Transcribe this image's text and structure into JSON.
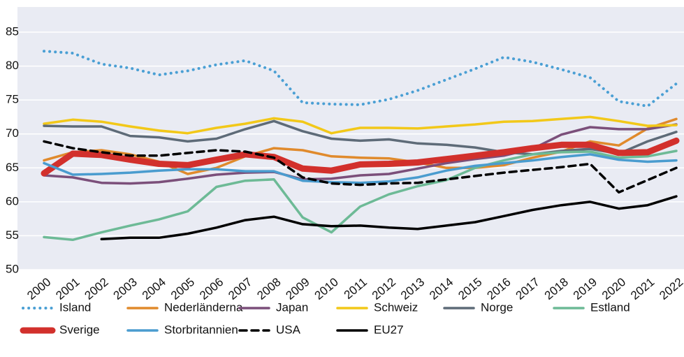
{
  "chart_data": {
    "type": "line",
    "x": [
      2000,
      2001,
      2002,
      2003,
      2004,
      2005,
      2006,
      2007,
      2008,
      2009,
      2010,
      2011,
      2012,
      2013,
      2014,
      2015,
      2016,
      2017,
      2018,
      2019,
      2020,
      2021,
      2022
    ],
    "xlim": [
      2000,
      2022
    ],
    "xticks": [
      2000,
      2001,
      2002,
      2003,
      2004,
      2005,
      2006,
      2007,
      2008,
      2009,
      2010,
      2011,
      2012,
      2013,
      2014,
      2015,
      2016,
      2017,
      2018,
      2019,
      2020,
      2021,
      2022
    ],
    "ylim": [
      50,
      85
    ],
    "yticks": [
      50,
      55,
      60,
      65,
      70,
      75,
      80,
      85
    ],
    "grid": true,
    "legend": "bottom",
    "series": [
      {
        "name": "Island",
        "color": "#4a9fd4",
        "style": "dotted",
        "width": 4,
        "values": [
          82.2,
          81.9,
          80.3,
          79.7,
          78.7,
          79.3,
          80.2,
          80.8,
          79.3,
          74.6,
          74.4,
          74.3,
          75.1,
          76.4,
          78.0,
          79.6,
          81.3,
          80.6,
          79.5,
          78.3,
          74.8,
          74.1,
          77.4
        ]
      },
      {
        "name": "Nederländerna",
        "color": "#e08a2c",
        "style": "solid",
        "width": 3.5,
        "values": [
          66.1,
          67.3,
          67.6,
          67.0,
          65.9,
          64.1,
          65.0,
          66.7,
          67.9,
          67.6,
          66.7,
          66.5,
          66.4,
          65.8,
          65.0,
          65.0,
          65.4,
          66.5,
          67.4,
          68.9,
          68.3,
          70.8,
          72.2
        ]
      },
      {
        "name": "Japan",
        "color": "#7b4f7a",
        "style": "solid",
        "width": 3.5,
        "values": [
          63.9,
          63.6,
          62.8,
          62.7,
          62.9,
          63.4,
          64.0,
          64.3,
          64.4,
          63.3,
          63.4,
          63.9,
          64.1,
          64.9,
          65.7,
          66.3,
          66.8,
          67.8,
          69.9,
          71.0,
          70.7,
          70.7,
          71.4
        ]
      },
      {
        "name": "Schweiz",
        "color": "#f2c819",
        "style": "solid",
        "width": 3.5,
        "values": [
          71.5,
          72.1,
          71.8,
          71.1,
          70.5,
          70.1,
          70.9,
          71.5,
          72.3,
          71.8,
          70.1,
          70.9,
          70.9,
          70.8,
          71.1,
          71.4,
          71.8,
          71.9,
          72.2,
          72.5,
          71.9,
          71.2,
          71.3
        ]
      },
      {
        "name": "Norge",
        "color": "#5e6b78",
        "style": "solid",
        "width": 3.5,
        "values": [
          71.2,
          71.1,
          71.1,
          69.7,
          69.5,
          68.9,
          69.3,
          70.7,
          71.9,
          70.4,
          69.3,
          69.0,
          69.2,
          68.6,
          68.4,
          68.0,
          67.3,
          67.0,
          67.5,
          67.8,
          67.1,
          68.9,
          70.3
        ]
      },
      {
        "name": "Estland",
        "color": "#6dba96",
        "style": "solid",
        "width": 3.5,
        "values": [
          54.8,
          54.4,
          55.5,
          56.5,
          57.4,
          58.6,
          62.2,
          63.1,
          63.3,
          57.7,
          55.5,
          59.3,
          61.1,
          62.3,
          63.2,
          65.0,
          66.1,
          67.0,
          67.3,
          67.4,
          66.5,
          66.7,
          67.5
        ]
      },
      {
        "name": "Sverige",
        "color": "#d2302c",
        "style": "solid",
        "width": 9,
        "values": [
          64.2,
          67.1,
          66.9,
          66.2,
          65.6,
          65.4,
          66.2,
          67.0,
          66.6,
          64.9,
          64.6,
          65.5,
          65.6,
          65.8,
          66.3,
          66.8,
          67.3,
          67.9,
          68.4,
          68.4,
          67.2,
          67.3,
          69.0
        ]
      },
      {
        "name": "Storbritannien",
        "color": "#4a9ccf",
        "style": "solid",
        "width": 3.5,
        "values": [
          65.7,
          64.0,
          64.1,
          64.3,
          64.6,
          64.8,
          64.8,
          64.5,
          64.5,
          63.1,
          62.9,
          62.8,
          63.0,
          63.6,
          64.6,
          65.3,
          65.7,
          66.1,
          66.6,
          67.0,
          66.2,
          65.9,
          66.1
        ]
      },
      {
        "name": "USA",
        "color": "#000000",
        "style": "dashed",
        "width": 3.5,
        "values": [
          68.9,
          67.9,
          67.3,
          66.8,
          66.8,
          67.2,
          67.6,
          67.4,
          66.5,
          63.6,
          62.7,
          62.5,
          62.7,
          62.8,
          63.3,
          63.8,
          64.3,
          64.7,
          65.1,
          65.6,
          61.4,
          63.2,
          65.0
        ]
      },
      {
        "name": "EU27",
        "color": "#000000",
        "style": "solid",
        "width": 3.5,
        "values": [
          null,
          null,
          54.5,
          54.7,
          54.7,
          55.3,
          56.2,
          57.3,
          57.8,
          56.7,
          56.4,
          56.5,
          56.2,
          56.0,
          56.5,
          57.0,
          57.9,
          58.8,
          59.5,
          60.0,
          59.0,
          59.5,
          60.8
        ]
      }
    ]
  }
}
